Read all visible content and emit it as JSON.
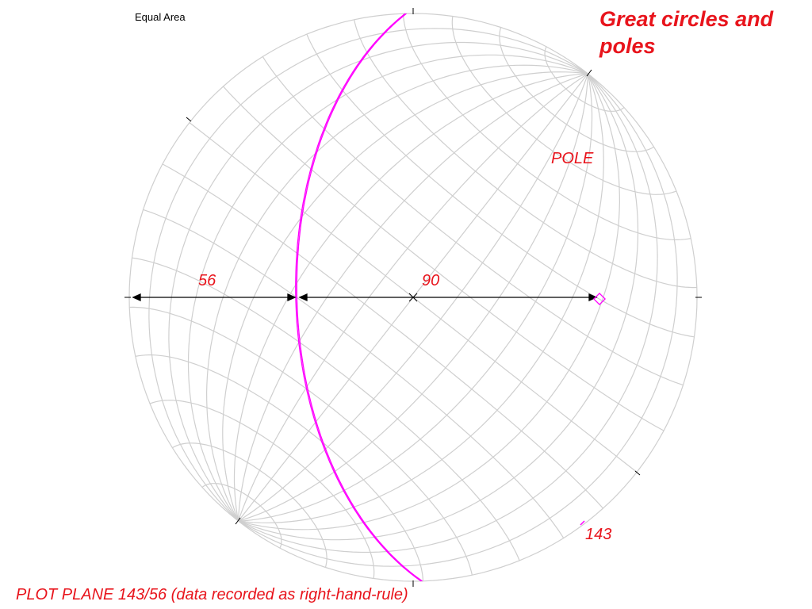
{
  "projection_label": "Equal Area",
  "title": "Great circles and poles",
  "pole_label": "POLE",
  "dip_label": "56",
  "complement_label": "90",
  "strike_label": "143",
  "caption": "PLOT PLANE 143/56  (data recorded as right-hand-rule)"
}
